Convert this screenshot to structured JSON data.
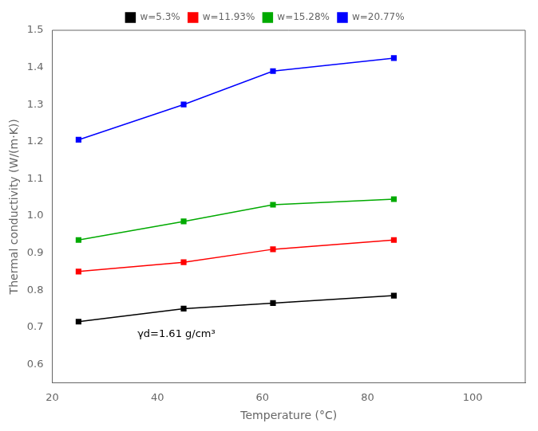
{
  "chart_data": {
    "type": "line",
    "x_label": "Temperature (°C)",
    "y_label": "Thermal conductivity (W/(m·K))",
    "annotation": "γd=1.61 g/cm³",
    "x": [
      25,
      45,
      62,
      85
    ],
    "series": [
      {
        "name": "w=5.3%",
        "color": "#000000",
        "values": [
          0.715,
          0.75,
          0.765,
          0.785
        ]
      },
      {
        "name": "w=11.93%",
        "color": "#ff0000",
        "values": [
          0.85,
          0.875,
          0.91,
          0.935
        ]
      },
      {
        "name": "w=15.28%",
        "color": "#00aa00",
        "values": [
          0.935,
          0.985,
          1.03,
          1.045
        ]
      },
      {
        "name": "w=20.77%",
        "color": "#0000ff",
        "values": [
          1.205,
          1.3,
          1.39,
          1.425
        ]
      }
    ],
    "xlim": [
      20,
      110
    ],
    "xticks": [
      20,
      40,
      60,
      80,
      100
    ],
    "ylim": [
      0.55,
      1.5
    ],
    "yticks": [
      0.6,
      0.7,
      0.8,
      0.9,
      {
        "value": 1.0,
        "label": "1.0"
      },
      1.1,
      1.2,
      1.3,
      1.4,
      1.5
    ],
    "marker": "square",
    "grid": false,
    "legend": "top"
  }
}
